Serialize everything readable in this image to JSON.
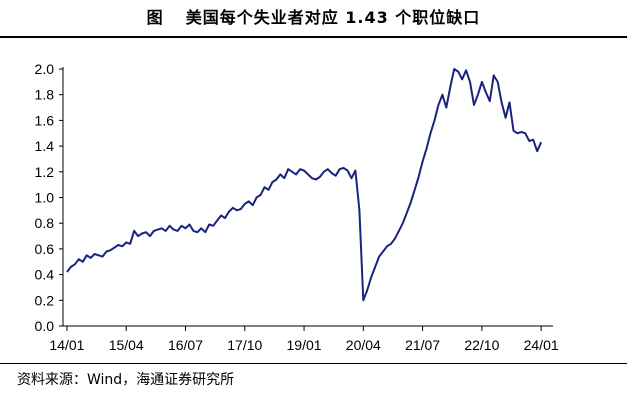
{
  "header": {
    "label": "图",
    "title": "美国每个失业者对应 1.43 个职位缺口"
  },
  "footer": {
    "source": "资料来源：Wind，海通证券研究所"
  },
  "colors": {
    "line": "#1a237e",
    "axis": "#000000"
  },
  "chart_data": {
    "type": "line",
    "title": "美国每个失业者对应 1.43 个职位缺口",
    "xlabel": "",
    "ylabel": "",
    "x_ticks": [
      "14/01",
      "15/04",
      "16/07",
      "17/10",
      "19/01",
      "20/04",
      "21/07",
      "22/10",
      "24/01"
    ],
    "y_ticks": [
      "0.0",
      "0.2",
      "0.4",
      "0.6",
      "0.8",
      "1.0",
      "1.2",
      "1.4",
      "1.6",
      "1.8",
      "2.0"
    ],
    "ylim": [
      0,
      2.0
    ],
    "grid": false,
    "legend": "none",
    "series": [
      {
        "x": [
          "2014-01",
          "2014-02",
          "2014-03",
          "2014-04",
          "2014-05",
          "2014-06",
          "2014-07",
          "2014-08",
          "2014-09",
          "2014-10",
          "2014-11",
          "2014-12",
          "2015-01",
          "2015-02",
          "2015-03",
          "2015-04",
          "2015-05",
          "2015-06",
          "2015-07",
          "2015-08",
          "2015-09",
          "2015-10",
          "2015-11",
          "2015-12",
          "2016-01",
          "2016-02",
          "2016-03",
          "2016-04",
          "2016-05",
          "2016-06",
          "2016-07",
          "2016-08",
          "2016-09",
          "2016-10",
          "2016-11",
          "2016-12",
          "2017-01",
          "2017-02",
          "2017-03",
          "2017-04",
          "2017-05",
          "2017-06",
          "2017-07",
          "2017-08",
          "2017-09",
          "2017-10",
          "2017-11",
          "2017-12",
          "2018-01",
          "2018-02",
          "2018-03",
          "2018-04",
          "2018-05",
          "2018-06",
          "2018-07",
          "2018-08",
          "2018-09",
          "2018-10",
          "2018-11",
          "2018-12",
          "2019-01",
          "2019-02",
          "2019-03",
          "2019-04",
          "2019-05",
          "2019-06",
          "2019-07",
          "2019-08",
          "2019-09",
          "2019-10",
          "2019-11",
          "2019-12",
          "2020-01",
          "2020-02",
          "2020-03",
          "2020-04",
          "2020-05",
          "2020-06",
          "2020-07",
          "2020-08",
          "2020-09",
          "2020-10",
          "2020-11",
          "2020-12",
          "2021-01",
          "2021-02",
          "2021-03",
          "2021-04",
          "2021-05",
          "2021-06",
          "2021-07",
          "2021-08",
          "2021-09",
          "2021-10",
          "2021-11",
          "2021-12",
          "2022-01",
          "2022-02",
          "2022-03",
          "2022-04",
          "2022-05",
          "2022-06",
          "2022-07",
          "2022-08",
          "2022-09",
          "2022-10",
          "2022-11",
          "2022-12",
          "2023-01",
          "2023-02",
          "2023-03",
          "2023-04",
          "2023-05",
          "2023-06",
          "2023-07",
          "2023-08",
          "2023-09",
          "2023-10",
          "2023-11",
          "2023-12",
          "2024-01"
        ],
        "values": [
          0.42,
          0.46,
          0.48,
          0.52,
          0.5,
          0.55,
          0.53,
          0.56,
          0.55,
          0.54,
          0.58,
          0.59,
          0.61,
          0.63,
          0.62,
          0.65,
          0.64,
          0.74,
          0.7,
          0.72,
          0.73,
          0.7,
          0.74,
          0.75,
          0.76,
          0.74,
          0.78,
          0.75,
          0.74,
          0.78,
          0.76,
          0.79,
          0.74,
          0.73,
          0.76,
          0.73,
          0.79,
          0.78,
          0.82,
          0.86,
          0.84,
          0.89,
          0.92,
          0.9,
          0.91,
          0.95,
          0.97,
          0.94,
          1.0,
          1.02,
          1.08,
          1.06,
          1.12,
          1.14,
          1.18,
          1.15,
          1.22,
          1.2,
          1.18,
          1.22,
          1.21,
          1.18,
          1.15,
          1.14,
          1.16,
          1.2,
          1.22,
          1.19,
          1.17,
          1.22,
          1.23,
          1.21,
          1.15,
          1.21,
          0.9,
          0.2,
          0.28,
          0.38,
          0.46,
          0.54,
          0.58,
          0.62,
          0.64,
          0.68,
          0.74,
          0.8,
          0.88,
          0.96,
          1.06,
          1.16,
          1.28,
          1.38,
          1.5,
          1.6,
          1.72,
          1.8,
          1.7,
          1.86,
          2.0,
          1.98,
          1.92,
          1.99,
          1.9,
          1.72,
          1.8,
          1.9,
          1.82,
          1.75,
          1.95,
          1.9,
          1.74,
          1.62,
          1.74,
          1.52,
          1.5,
          1.51,
          1.5,
          1.44,
          1.45,
          1.36,
          1.43
        ]
      }
    ]
  }
}
